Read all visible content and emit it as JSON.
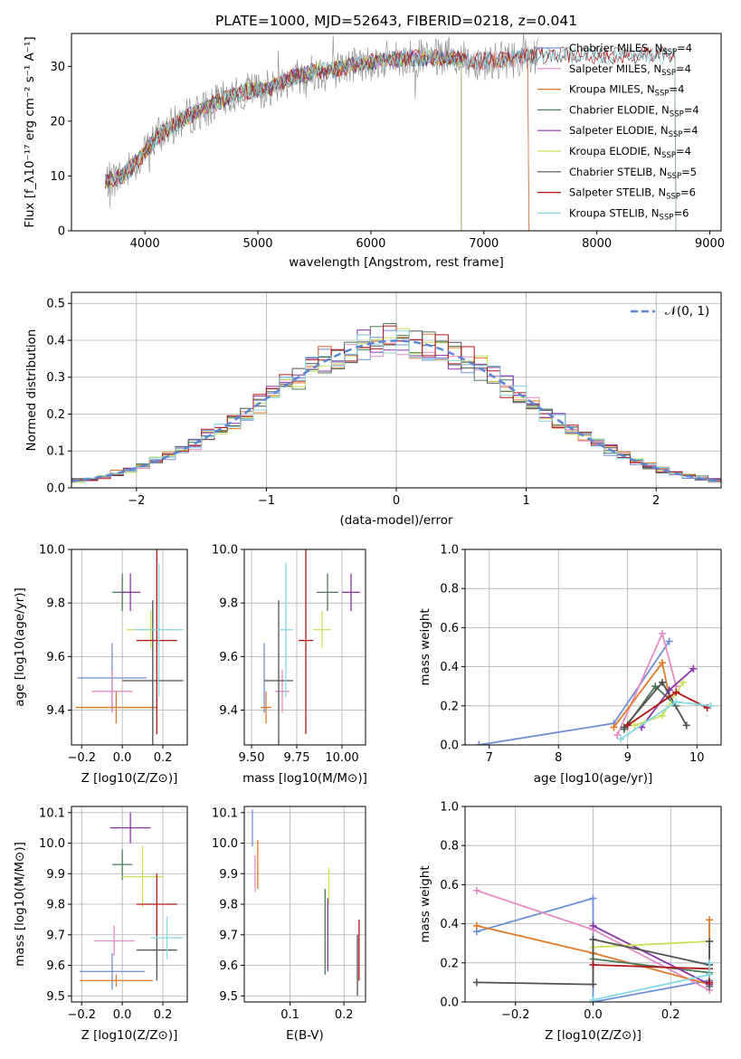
{
  "title": "PLATE=1000, MJD=52643, FIBERID=0218, z=0.041",
  "colors": {
    "chabrier_miles": "#6f8fd6",
    "salpeter_miles": "#e58cc6",
    "kroupa_miles": "#e07b2b",
    "chabrier_elodie": "#4a7a5a",
    "salpeter_elodie": "#8b34a8",
    "kroupa_elodie": "#c8e05a",
    "chabrier_stelib": "#505050",
    "salpeter_stelib": "#b01818",
    "kroupa_stelib": "#86d8e4"
  },
  "chart_data": [
    {
      "id": "spectrum",
      "type": "line",
      "title": "PLATE=1000, MJD=52643, FIBERID=0218, z=0.041",
      "xlabel": "wavelength [Angstrom, rest frame]",
      "ylabel": "Flux [f_λ10⁻¹⁷ erg cm⁻² s⁻¹ A⁻¹]",
      "xlim": [
        3350,
        9100
      ],
      "ylim": [
        0,
        36
      ],
      "xticks": [
        4000,
        5000,
        6000,
        7000,
        8000,
        9000
      ],
      "yticks": [
        0,
        10,
        20,
        30
      ],
      "legend_position": "top-right",
      "legend": [
        {
          "pre": "Chabrier MILES, N",
          "sub": "SSP",
          "post": "=4"
        },
        {
          "pre": "Salpeter MILES, N",
          "sub": "SSP",
          "post": "=4"
        },
        {
          "pre": "Kroupa MILES, N",
          "sub": "SSP",
          "post": "=4"
        },
        {
          "pre": "Chabrier ELODIE, N",
          "sub": "SSP",
          "post": "=4"
        },
        {
          "pre": "Salpeter ELODIE, N",
          "sub": "SSP",
          "post": "=4"
        },
        {
          "pre": "Kroupa ELODIE, N",
          "sub": "SSP",
          "post": "=4"
        },
        {
          "pre": "Chabrier STELIB, N",
          "sub": "SSP",
          "post": "=5"
        },
        {
          "pre": "Salpeter STELIB, N",
          "sub": "SSP",
          "post": "=6"
        },
        {
          "pre": "Kroupa STELIB, N",
          "sub": "SSP",
          "post": "=6"
        }
      ],
      "series_envelope": {
        "x": [
          3650,
          3800,
          3950,
          4100,
          4300,
          4500,
          4700,
          4900,
          5100,
          5300,
          5500,
          5700,
          5900,
          6100,
          6300,
          6500,
          6700,
          6900,
          7100,
          7300,
          7450
        ],
        "y": [
          9,
          10,
          13,
          17,
          20,
          22,
          24,
          25.5,
          26,
          28,
          29,
          29.5,
          30.5,
          31,
          31.5,
          31.5,
          31.5,
          31,
          31,
          31.5,
          32
        ]
      },
      "ssp_end_wavelengths": {
        "miles": 7400,
        "elodie": 6800,
        "stelib": 8700
      }
    },
    {
      "id": "residuals",
      "type": "line",
      "xlabel": "(data-model)/error",
      "ylabel": "Normed distribution",
      "xlim": [
        -2.5,
        2.5
      ],
      "ylim": [
        0,
        0.53
      ],
      "xticks": [
        -2,
        -1,
        0,
        1,
        2
      ],
      "yticks": [
        0.0,
        0.1,
        0.2,
        0.3,
        0.4,
        0.5
      ],
      "legend": [
        "𝒩(0, 1)"
      ],
      "legend_position": "top-right",
      "reference": {
        "name": "𝒩(0, 1)",
        "mean": 0,
        "sigma": 1
      },
      "bin_width": 0.1
    },
    {
      "id": "age_vs_Z",
      "type": "scatter",
      "xlabel": "Z [log10(Z/Z⊙)]",
      "ylabel": "age [log10(age/yr)]",
      "xlim": [
        -0.25,
        0.32
      ],
      "ylim": [
        9.27,
        10.0
      ],
      "xticks": [
        -0.2,
        0.0,
        0.2
      ],
      "yticks": [
        9.4,
        9.6,
        9.8,
        10.0
      ],
      "points": [
        {
          "x": -0.05,
          "y": 9.52,
          "xerr": 0.17,
          "yerr": 0.13
        },
        {
          "x": -0.05,
          "y": 9.47,
          "xerr": 0.1,
          "yerr": 0.08
        },
        {
          "x": -0.03,
          "y": 9.41,
          "xerr": 0.2,
          "yerr": 0.06
        },
        {
          "x": 0.0,
          "y": 9.84,
          "xerr": 0.05,
          "yerr": 0.07
        },
        {
          "x": 0.04,
          "y": 9.84,
          "xerr": 0.05,
          "yerr": 0.07
        },
        {
          "x": 0.14,
          "y": 9.7,
          "xerr": 0.12,
          "yerr": 0.07
        },
        {
          "x": 0.15,
          "y": 9.51,
          "xerr": 0.15,
          "yerr": 0.3
        },
        {
          "x": 0.17,
          "y": 9.66,
          "xerr": 0.1,
          "yerr": 0.35
        },
        {
          "x": 0.18,
          "y": 9.7,
          "xerr": 0.12,
          "yerr": 0.25
        }
      ]
    },
    {
      "id": "age_vs_mass",
      "type": "scatter",
      "xlabel": "mass [log10(M/M⊙)]",
      "ylabel": "",
      "xlim": [
        9.46,
        10.13
      ],
      "ylim": [
        9.27,
        10.0
      ],
      "xticks": [
        9.5,
        9.75,
        10.0
      ],
      "xticklabels": [
        "9.50",
        "9.75",
        "10.00"
      ],
      "yticks": [
        9.4,
        9.6,
        9.8,
        10.0
      ],
      "points": [
        {
          "x": 9.57,
          "y": 9.52,
          "xerr": 0.0,
          "yerr": 0.13
        },
        {
          "x": 9.67,
          "y": 9.47,
          "xerr": 0.04,
          "yerr": 0.08
        },
        {
          "x": 9.58,
          "y": 9.41,
          "xerr": 0.03,
          "yerr": 0.06
        },
        {
          "x": 9.92,
          "y": 9.84,
          "xerr": 0.06,
          "yerr": 0.07
        },
        {
          "x": 10.05,
          "y": 9.84,
          "xerr": 0.05,
          "yerr": 0.07
        },
        {
          "x": 9.89,
          "y": 9.7,
          "xerr": 0.05,
          "yerr": 0.07
        },
        {
          "x": 9.65,
          "y": 9.51,
          "xerr": 0.08,
          "yerr": 0.3
        },
        {
          "x": 9.8,
          "y": 9.66,
          "xerr": 0.04,
          "yerr": 0.35
        },
        {
          "x": 9.69,
          "y": 9.7,
          "xerr": 0.04,
          "yerr": 0.25
        }
      ]
    },
    {
      "id": "weight_vs_age",
      "type": "line",
      "xlabel": "age [log10(age/yr)]",
      "ylabel": "mass weight",
      "xlim": [
        6.65,
        10.35
      ],
      "ylim": [
        0.0,
        1.0
      ],
      "xticks": [
        7,
        8,
        9,
        10
      ],
      "yticks": [
        0.0,
        0.2,
        0.4,
        0.6,
        0.8,
        1.0
      ],
      "series": [
        {
          "key": "chabrier_miles",
          "x": [
            6.85,
            8.8,
            9.6
          ],
          "y": [
            0.0,
            0.11,
            0.53
          ]
        },
        {
          "key": "salpeter_miles",
          "x": [
            8.85,
            9.5,
            9.7
          ],
          "y": [
            0.05,
            0.57,
            0.3
          ]
        },
        {
          "key": "kroupa_miles",
          "x": [
            8.8,
            9.5,
            9.6
          ],
          "y": [
            0.09,
            0.42,
            0.25
          ]
        },
        {
          "key": "chabrier_elodie",
          "x": [
            8.95,
            9.4,
            9.7
          ],
          "y": [
            0.08,
            0.3,
            0.2
          ]
        },
        {
          "key": "salpeter_elodie",
          "x": [
            9.2,
            9.6,
            9.95
          ],
          "y": [
            0.09,
            0.28,
            0.39
          ]
        },
        {
          "key": "kroupa_elodie",
          "x": [
            9.1,
            9.5,
            9.8
          ],
          "y": [
            0.1,
            0.15,
            0.32
          ]
        },
        {
          "key": "chabrier_stelib",
          "x": [
            8.95,
            9.5,
            9.85
          ],
          "y": [
            0.09,
            0.32,
            0.1
          ]
        },
        {
          "key": "salpeter_stelib",
          "x": [
            9.0,
            9.7,
            10.15
          ],
          "y": [
            0.1,
            0.27,
            0.19
          ]
        },
        {
          "key": "kroupa_stelib",
          "x": [
            8.9,
            9.7,
            10.2
          ],
          "y": [
            0.03,
            0.22,
            0.2
          ]
        }
      ]
    },
    {
      "id": "mass_vs_Z",
      "type": "scatter",
      "xlabel": "Z [log10(Z/Z⊙)]",
      "ylabel": "mass [log10(M/M⊙)]",
      "xlim": [
        -0.25,
        0.32
      ],
      "ylim": [
        9.48,
        10.12
      ],
      "xticks": [
        -0.2,
        0.0,
        0.2
      ],
      "yticks": [
        9.5,
        9.6,
        9.7,
        9.8,
        9.9,
        10.0,
        10.1
      ],
      "points": [
        {
          "x": -0.05,
          "y": 9.58,
          "xerr": 0.16,
          "yerr": 0.06
        },
        {
          "x": -0.04,
          "y": 9.68,
          "xerr": 0.1,
          "yerr": 0.05
        },
        {
          "x": -0.03,
          "y": 9.55,
          "xerr": 0.18,
          "yerr": 0.02
        },
        {
          "x": 0.0,
          "y": 9.93,
          "xerr": 0.05,
          "yerr": 0.05
        },
        {
          "x": 0.04,
          "y": 10.05,
          "xerr": 0.1,
          "yerr": 0.05
        },
        {
          "x": 0.1,
          "y": 9.89,
          "xerr": 0.1,
          "yerr": 0.1
        },
        {
          "x": 0.17,
          "y": 9.65,
          "xerr": 0.1,
          "yerr": 0.1
        },
        {
          "x": 0.17,
          "y": 9.8,
          "xerr": 0.1,
          "yerr": 0.1
        },
        {
          "x": 0.22,
          "y": 9.69,
          "xerr": 0.08,
          "yerr": 0.07
        }
      ]
    },
    {
      "id": "mass_vs_ebv",
      "type": "scatter",
      "xlabel": "E(B-V)",
      "ylabel": "",
      "xlim": [
        0.015,
        0.24
      ],
      "ylim": [
        9.48,
        10.12
      ],
      "xticks": [
        0.1,
        0.2
      ],
      "yticks": [
        9.5,
        9.6,
        9.7,
        9.8,
        9.9,
        10.0,
        10.1
      ],
      "points": [
        {
          "x": 0.03,
          "y": 10.05,
          "yerr": 0.06
        },
        {
          "x": 0.035,
          "y": 9.9,
          "yerr": 0.06
        },
        {
          "x": 0.04,
          "y": 9.93,
          "yerr": 0.08
        },
        {
          "x": 0.165,
          "y": 9.71,
          "yerr": 0.14
        },
        {
          "x": 0.17,
          "y": 9.7,
          "yerr": 0.12
        },
        {
          "x": 0.172,
          "y": 9.86,
          "yerr": 0.06
        },
        {
          "x": 0.225,
          "y": 9.6,
          "yerr": 0.1
        },
        {
          "x": 0.228,
          "y": 9.65,
          "yerr": 0.1
        }
      ]
    },
    {
      "id": "weight_vs_Z",
      "type": "line",
      "xlabel": "Z [log10(Z/Z⊙)]",
      "ylabel": "mass weight",
      "xlim": [
        -0.33,
        0.33
      ],
      "ylim": [
        0.0,
        1.0
      ],
      "xticks": [
        -0.2,
        0.0,
        0.2
      ],
      "yticks": [
        0.0,
        0.2,
        0.4,
        0.6,
        0.8,
        1.0
      ],
      "series": [
        {
          "key": "chabrier_miles",
          "x": [
            -0.3,
            0.0,
            0.0,
            0.3
          ],
          "y": [
            0.36,
            0.53,
            0.0,
            0.11
          ]
        },
        {
          "key": "salpeter_miles",
          "x": [
            -0.3,
            0.0,
            0.3
          ],
          "y": [
            0.57,
            0.37,
            0.06
          ]
        },
        {
          "key": "kroupa_miles",
          "x": [
            -0.3,
            0.0,
            0.3,
            0.3
          ],
          "y": [
            0.39,
            0.25,
            0.09,
            0.42
          ]
        },
        {
          "key": "chabrier_elodie",
          "x": [
            0.0,
            0.3,
            0.3
          ],
          "y": [
            0.22,
            0.15,
            0.08
          ]
        },
        {
          "key": "salpeter_elodie",
          "x": [
            0.0,
            0.3,
            0.3
          ],
          "y": [
            0.39,
            0.09,
            0.1
          ]
        },
        {
          "key": "kroupa_elodie",
          "x": [
            0.0,
            0.3
          ],
          "y": [
            0.28,
            0.31
          ]
        },
        {
          "key": "chabrier_stelib",
          "x": [
            -0.3,
            0.0,
            0.0,
            0.3,
            0.3
          ],
          "y": [
            0.1,
            0.09,
            0.32,
            0.19,
            0.31
          ]
        },
        {
          "key": "salpeter_stelib",
          "x": [
            0.0,
            0.3,
            0.3
          ],
          "y": [
            0.19,
            0.17,
            0.1
          ]
        },
        {
          "key": "kroupa_stelib",
          "x": [
            0.0,
            0.3,
            0.3
          ],
          "y": [
            0.01,
            0.14,
            0.2
          ]
        }
      ]
    }
  ]
}
